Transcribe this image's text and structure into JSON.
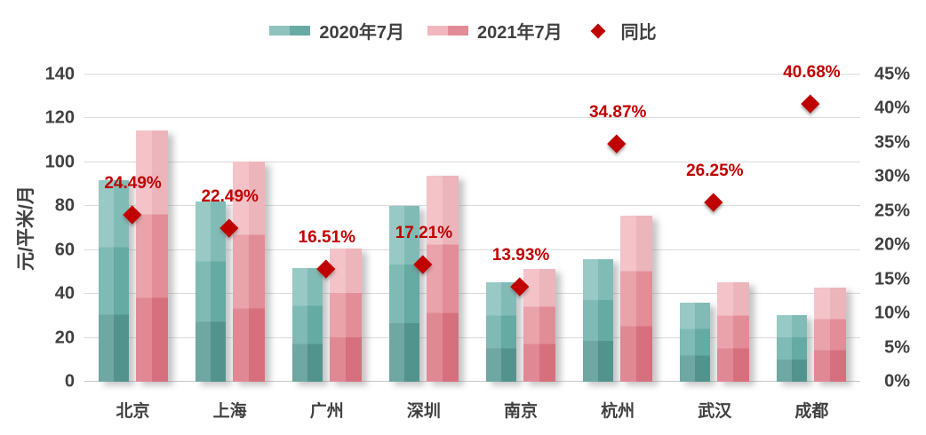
{
  "colors": {
    "text": "#404040",
    "gridline": "#d9d9d9",
    "accent_red": "#c00000"
  },
  "chart_data": {
    "type": "bar",
    "title": "",
    "categories": [
      "北京",
      "上海",
      "广州",
      "深圳",
      "南京",
      "杭州",
      "武汉",
      "成都"
    ],
    "series": [
      {
        "name": "2020年7月",
        "values": [
          92,
          82,
          52,
          80,
          45.3,
          56,
          36,
          30.5
        ],
        "colors": {
          "bottom": "#549690",
          "mid": "#67ada6",
          "top": "#84bfb9"
        },
        "legend_swatch": [
          "#8fc3bd",
          "#69aba4"
        ]
      },
      {
        "name": "2021年7月",
        "values": [
          114.5,
          100.4,
          60.6,
          93.8,
          51.6,
          75.5,
          45.4,
          42.9
        ],
        "colors": {
          "bottom": "#da7280",
          "mid": "#e6909b",
          "top": "#f1b8bf"
        },
        "legend_swatch": [
          "#f2b7be",
          "#e18b96"
        ]
      }
    ],
    "scatter_series": {
      "name": "同比",
      "color": "#c00000",
      "values": [
        24.49,
        22.49,
        16.51,
        17.21,
        13.93,
        34.87,
        26.25,
        40.68
      ],
      "labels": [
        "24.49%",
        "22.49%",
        "16.51%",
        "17.21%",
        "13.93%",
        "34.87%",
        "26.25%",
        "40.68%"
      ]
    },
    "left_axis": {
      "label": "元/平米/月",
      "min": 0,
      "max": 140,
      "ticks": [
        0,
        20,
        40,
        60,
        80,
        100,
        120,
        140
      ]
    },
    "right_axis": {
      "min": 0,
      "max": 45,
      "ticks": [
        "0%",
        "5%",
        "10%",
        "15%",
        "20%",
        "25%",
        "30%",
        "35%",
        "40%",
        "45%"
      ]
    },
    "grid": true,
    "legend_position": "top"
  }
}
